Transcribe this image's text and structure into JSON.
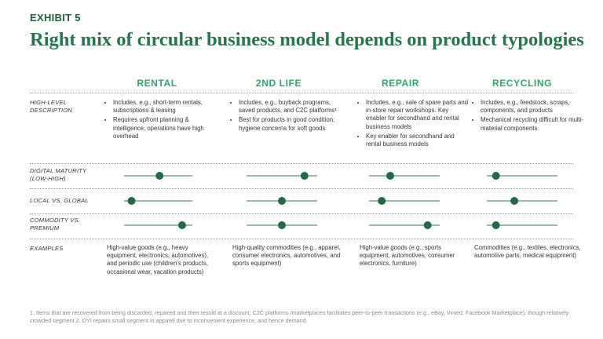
{
  "header": {
    "exhibit": "EXHIBIT 5",
    "title": "Right mix of circular business model depends on product typologies"
  },
  "columns": [
    "RENTAL",
    "2ND LIFE",
    "REPAIR",
    "RECYCLING"
  ],
  "description": {
    "label": "HIGH-LEVEL DESCRIPTION",
    "bullets": [
      [
        "Includes, e.g., short-term rentals, subscriptions & leasing",
        "Requires upfront planning & intelligence, operations have high overhead"
      ],
      [
        "Includes, e.g., buyback programs, saved products, and C2C platforms¹",
        "Best for products in good condition; hygiene concerns for soft goods"
      ],
      [
        "Includes, e.g., sale of spare parts and in-store repair workshops. Key enabler for secondhand and rental business models",
        "Key enabler for secondhand and rental business models"
      ],
      [
        "Includes, e.g., feedstock, scraps, components, and products",
        "Mechanical recycling difficult for multi-material components"
      ]
    ]
  },
  "scales": [
    {
      "label": "DIGITAL MATURITY (LOW-HIGH)",
      "positions": [
        0.52,
        0.82,
        0.3,
        0.13
      ]
    },
    {
      "label": "LOCAL VS. GLOBAL",
      "positions": [
        0.11,
        0.5,
        0.18,
        0.39
      ]
    },
    {
      "label": "COMMODITY VS. PREMIUM",
      "positions": [
        0.85,
        0.5,
        0.83,
        0.13
      ]
    }
  ],
  "examples": {
    "label": "EXAMPLES",
    "texts": [
      "High-value goods (e.g., heavy equipment, electronics, automotives), and periodic use (children’s products, occasional wear, vacation products)",
      "High-quality commodities (e.g., apparel, consumer electronics, automotives, and sports equipment)",
      "High-value goods (e.g., sports equipment, automotives, consumer electronics, furniture)",
      "Commodities (e.g., textiles, electronics, automotive parts, medical equipment)"
    ]
  },
  "footnote": "1. Items that are recovered from being discarded, repaired and then resold at a discount; C2C platforms /marketplaces facilitates peer-to-peer transactions (e.g., eBay, Vinted, Facebook Marketplace), though relatively crowded segment 2.  DYI repairs small segment in apparel due to inconvenient experience, and hence demand"
}
